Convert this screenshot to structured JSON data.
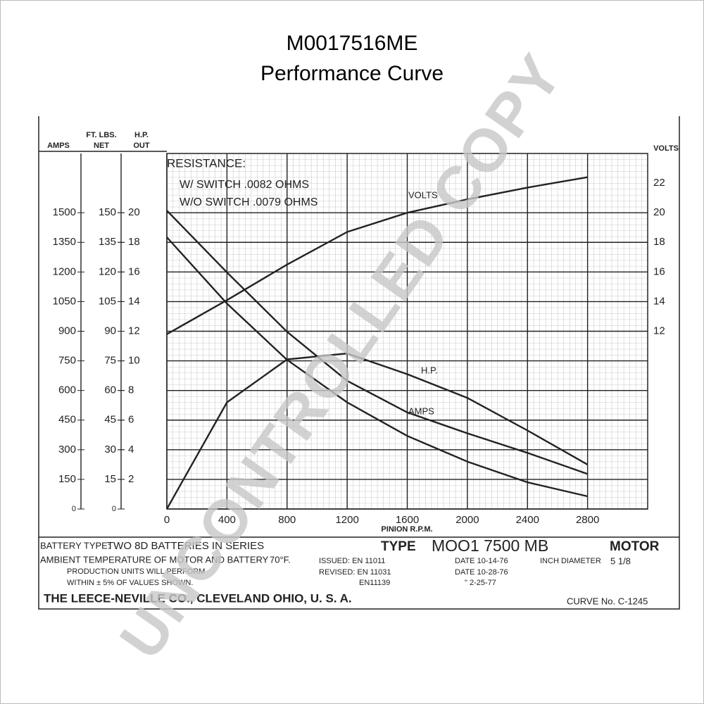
{
  "chart_data": {
    "type": "line",
    "title": "M0017516ME",
    "subtitle": "Performance Curve",
    "xlabel": "PINION R.P.M.",
    "xlim": [
      0,
      3200
    ],
    "xticks": [
      0,
      400,
      800,
      1200,
      1600,
      2000,
      2400,
      2800
    ],
    "x": [
      0,
      400,
      800,
      1200,
      1600,
      2000,
      2400,
      2800
    ],
    "grid": true,
    "axes": [
      {
        "label": [
          "AMPS"
        ],
        "lim": [
          0,
          1800
        ],
        "ticks": [
          0,
          150,
          300,
          450,
          600,
          750,
          900,
          1050,
          1200,
          1350,
          1500
        ]
      },
      {
        "label": [
          "FT. LBS.",
          "NET"
        ],
        "lim": [
          0,
          180
        ],
        "ticks": [
          0,
          15,
          30,
          45,
          60,
          75,
          90,
          105,
          120,
          135,
          150
        ]
      },
      {
        "label": [
          "H.P.",
          "OUT"
        ],
        "lim": [
          0,
          24
        ],
        "ticks": [
          2,
          4,
          6,
          8,
          10,
          12,
          14,
          16,
          18,
          20
        ]
      },
      {
        "label": [
          "VOLTS"
        ],
        "lim": [
          0,
          24
        ],
        "ticks": [
          12,
          14,
          16,
          18,
          20,
          22
        ]
      }
    ],
    "series": [
      {
        "name": "VOLTS",
        "axis": 3,
        "color": "#222",
        "values": [
          11.8,
          14.1,
          16.5,
          18.7,
          20.0,
          20.9,
          21.7,
          22.4
        ]
      },
      {
        "name": "AMPS",
        "axis": 0,
        "color": "#222",
        "values": [
          1511,
          1198,
          897,
          649,
          489,
          383,
          284,
          177
        ]
      },
      {
        "axis": 1,
        "color": "#222",
        "values": [
          137.6,
          104,
          75.5,
          54,
          37,
          24,
          13.5,
          6.4
        ]
      },
      {
        "name": "H.P.",
        "axis": 2,
        "color": "#222",
        "values": [
          0,
          7.2,
          10.1,
          10.5,
          9.1,
          7.5,
          5.3,
          3.0
        ]
      }
    ],
    "annotations": [
      "RESISTANCE:",
      "W/ SWITCH .0082 OHMS",
      "W/O SWITCH .0079 OHMS"
    ],
    "footer": {
      "battery_type_label": "BATTERY TYPE:",
      "battery_type": "TWO 8D BATTERIES IN SERIES",
      "ambient": "AMBIENT TEMPERATURE OF MOTOR AND BATTERY",
      "temperature": "70°F.",
      "production": "PRODUCTION UNITS WILL PERFORM",
      "tolerance": "WITHIN ± 5% OF VALUES SHOWN.",
      "issued": "ISSUED: EN 11011",
      "revised": "REVISED: EN 11031",
      "revised2": "EN11139",
      "type_label": "TYPE",
      "type": "MOO1 7500 MB",
      "motor": "MOTOR",
      "date1": "DATE 10-14-76",
      "diameter": "INCH DIAMETER",
      "diameter_value": "5 1/8",
      "date2": "DATE 10-28-76",
      "date3": "\"  2-25-77",
      "company": "THE LEECE-NEVILLE CO., CLEVELAND OHIO, U. S. A.",
      "curve_no": "CURVE No. C-1245"
    },
    "watermark": "UNCONTROLLED COPY"
  }
}
